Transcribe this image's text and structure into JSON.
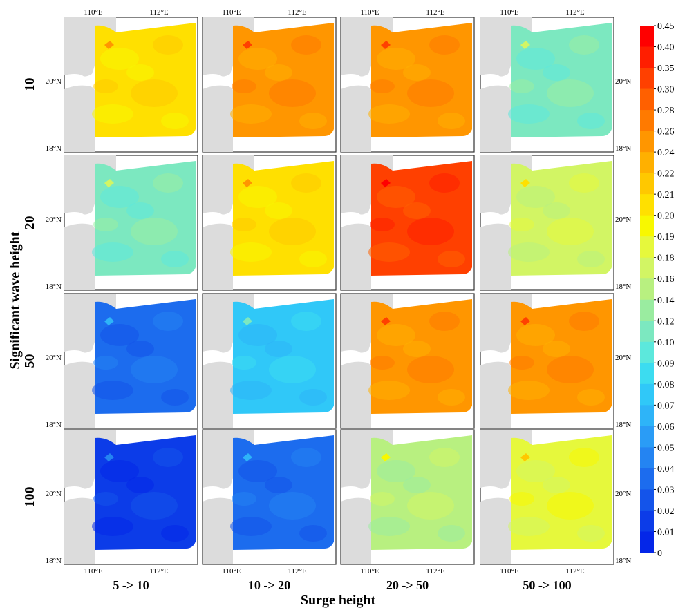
{
  "chart_data": {
    "type": "heatmap",
    "description_units": "each panel is a colour-filled map; value = typical colour-scale level in panel",
    "ylabel": "Significant wave height",
    "xlabel": "Surge height",
    "row_labels": [
      "10",
      "20",
      "50",
      "100"
    ],
    "col_labels": [
      "5 -> 10",
      "10 -> 20",
      "20 -> 50",
      "50 -> 100"
    ],
    "lon_ticks": [
      "110°E",
      "112°E"
    ],
    "lat_ticks": [
      "20°N",
      "18°N"
    ],
    "panels": [
      [
        0.2,
        0.25,
        0.24,
        0.1
      ],
      [
        0.11,
        0.2,
        0.32,
        0.17
      ],
      [
        0.03,
        0.07,
        0.24,
        0.25
      ],
      [
        0.01,
        0.03,
        0.14,
        0.18
      ]
    ],
    "colorbar": {
      "ticks": [
        "0.45",
        "0.40",
        "0.35",
        "0.30",
        "0.28",
        "0.26",
        "0.24",
        "0.22",
        "0.21",
        "0.20",
        "0.19",
        "0.18",
        "0.16",
        "0.14",
        "0.12",
        "0.10",
        "0.09",
        "0.08",
        "0.07",
        "0.06",
        "0.05",
        "0.04",
        "0.03",
        "0.02",
        "0.01",
        "0"
      ],
      "colors": [
        "#ff0000",
        "#ff1e00",
        "#ff4000",
        "#ff6000",
        "#ff7a00",
        "#ff9600",
        "#ffb000",
        "#ffc800",
        "#ffe000",
        "#f8f800",
        "#e6f83c",
        "#d2f564",
        "#b8f080",
        "#9aeca0",
        "#7ce8c0",
        "#5ce8dc",
        "#3cdcf0",
        "#30c8f8",
        "#2eb4f8",
        "#2a9cf6",
        "#2484f2",
        "#1c6cee",
        "#1454ea",
        "#0c3ce8",
        "#0426e8"
      ]
    },
    "grid": false
  },
  "colors": {
    "land": "#dcdcdc",
    "frame": "#333333",
    "bg": "#ffffff"
  }
}
